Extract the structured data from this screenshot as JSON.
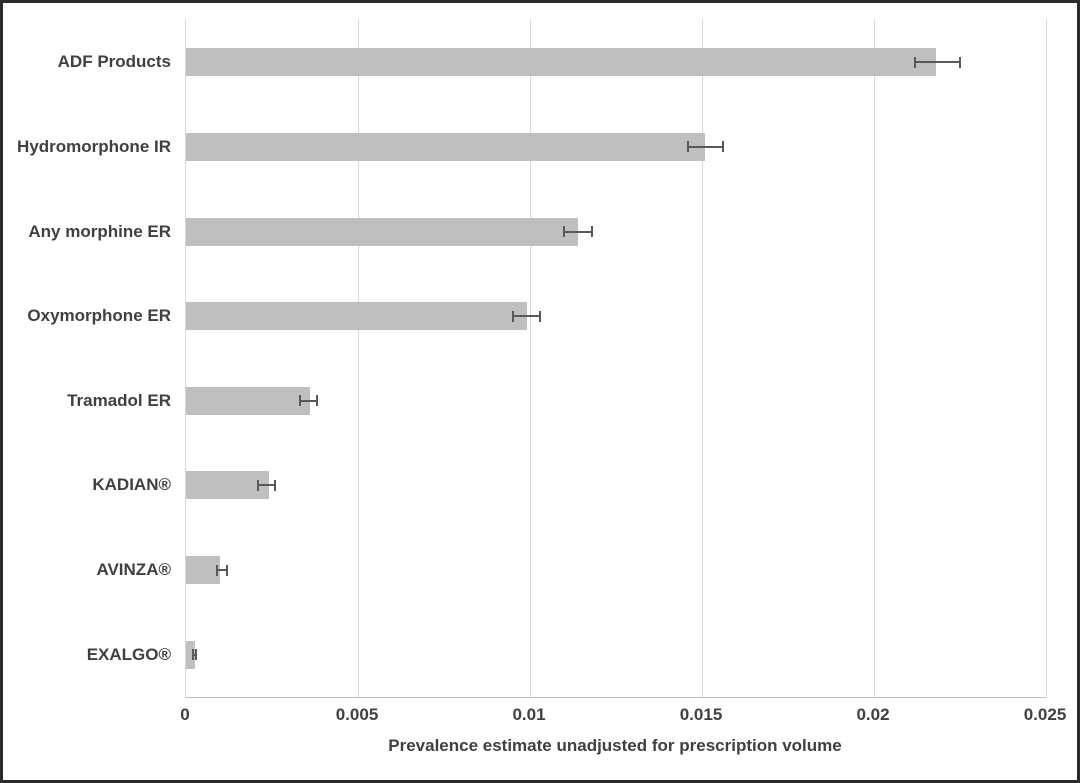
{
  "chart_data": {
    "type": "bar",
    "orientation": "horizontal",
    "title": "",
    "xlabel": "Prevalence estimate unadjusted for prescription volume",
    "ylabel": "",
    "xlim": [
      0,
      0.025
    ],
    "xticks": [
      {
        "value": 0,
        "label": "0"
      },
      {
        "value": 0.005,
        "label": "0.005"
      },
      {
        "value": 0.01,
        "label": "0.01"
      },
      {
        "value": 0.015,
        "label": "0.015"
      },
      {
        "value": 0.02,
        "label": "0.02"
      },
      {
        "value": 0.025,
        "label": "0.025"
      }
    ],
    "grid": true,
    "legend": false,
    "categories": [
      "ADF Products",
      "Hydromorphone IR",
      "Any morphine ER",
      "Oxymorphone ER",
      "Tramadol ER",
      "KADIAN®",
      "AVINZA®",
      "EXALGO®"
    ],
    "series": [
      {
        "name": "Prevalence estimate",
        "values": [
          0.0218,
          0.0151,
          0.0114,
          0.0099,
          0.0036,
          0.0024,
          0.001,
          0.00025
        ],
        "error_low": [
          0.0212,
          0.0146,
          0.011,
          0.0095,
          0.0033,
          0.0021,
          0.0009,
          0.0002
        ],
        "error_high": [
          0.0225,
          0.0156,
          0.0118,
          0.0103,
          0.0038,
          0.0026,
          0.0012,
          0.0003
        ]
      }
    ],
    "colors": {
      "bar_fill": "#bfbfbf",
      "error_bar": "#595959",
      "gridline": "#d9d9d9",
      "axis_line": "#bfbfbf",
      "text": "#404040",
      "background": "#ffffff",
      "frame_border": "#2b2b2b"
    }
  }
}
